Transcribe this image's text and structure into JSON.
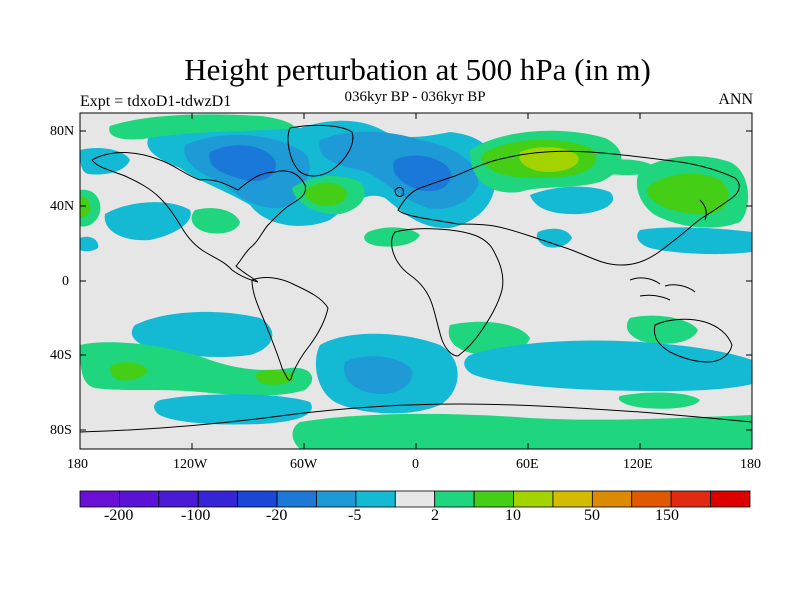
{
  "header": {
    "title": "Height perturbation at 500 hPa (in m)",
    "subtitle": "036kyr BP - 036kyr BP",
    "experiment": "Expt = tdxoD1-tdwzD1",
    "season": "ANN"
  },
  "map": {
    "lat_ticks": [
      "80N",
      "40N",
      "0",
      "40S",
      "80S"
    ],
    "lon_ticks": [
      "180",
      "120W",
      "60W",
      "0",
      "60E",
      "120E",
      "180"
    ],
    "colors": {
      "background": "#e6e6e6",
      "land_outline": "#000000",
      "pos_2_10": "#1fd57e",
      "pos_10_50": "#44cf16",
      "pos_50_150": "#a3d400",
      "neg_5_2": "#14b9d4",
      "neg_20_5": "#1e9ad6",
      "neg_100_20": "#1a78d8"
    }
  },
  "colorbar": {
    "colors": [
      "#6a0fd6",
      "#5a13d6",
      "#4a1ad6",
      "#3525d6",
      "#1a47d8",
      "#1e78d6",
      "#1d9ad6",
      "#14b9d4",
      "#e6e6e6",
      "#1fd57e",
      "#44cf16",
      "#a3d400",
      "#d4bb00",
      "#dc8a00",
      "#e05800",
      "#e02b12",
      "#dc0000"
    ],
    "labels": [
      "-200",
      "-100",
      "-20",
      "-5",
      "2",
      "10",
      "50",
      "150"
    ]
  }
}
